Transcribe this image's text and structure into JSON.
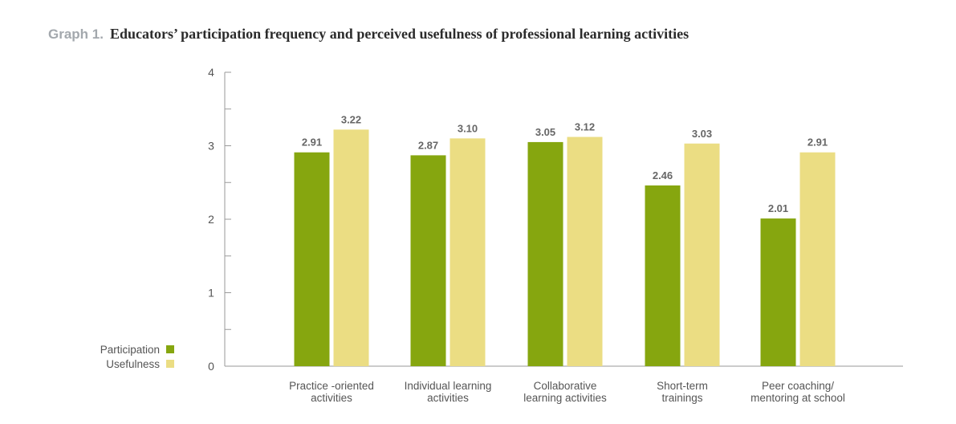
{
  "title": {
    "prefix": "Graph 1.",
    "main": "Educators’ participation frequency and perceived usefulness of professional learning activities"
  },
  "colors": {
    "participation": "#86a60f",
    "usefulness": "#ebdd83",
    "axis": "#9a9a9a",
    "text": "#555555",
    "label": "#666666"
  },
  "chart_data": {
    "type": "bar",
    "title": "Educators’ participation frequency and perceived usefulness of professional learning activities",
    "categories": [
      [
        "Practice -oriented",
        "activities"
      ],
      [
        "Individual learning",
        "activities"
      ],
      [
        "Collaborative",
        "learning activities"
      ],
      [
        "Short-term",
        "trainings"
      ],
      [
        "Peer coaching/",
        "mentoring at school"
      ]
    ],
    "series": [
      {
        "name": "Participation",
        "values": [
          2.91,
          2.87,
          3.05,
          2.46,
          2.01
        ],
        "labels": [
          "2.91",
          "2.87",
          "3.05",
          "2.46",
          "2.01"
        ]
      },
      {
        "name": "Usefulness",
        "values": [
          3.22,
          3.1,
          3.12,
          3.03,
          2.91
        ],
        "labels": [
          "3.22",
          "3.10",
          "3.12",
          "3.03",
          "2.91"
        ]
      }
    ],
    "ylim": [
      0,
      4
    ],
    "yticks": [
      "0",
      "1",
      "2",
      "3",
      "4"
    ],
    "grid": false,
    "legend_position": "bottom-left",
    "xlabel": "",
    "ylabel": ""
  }
}
